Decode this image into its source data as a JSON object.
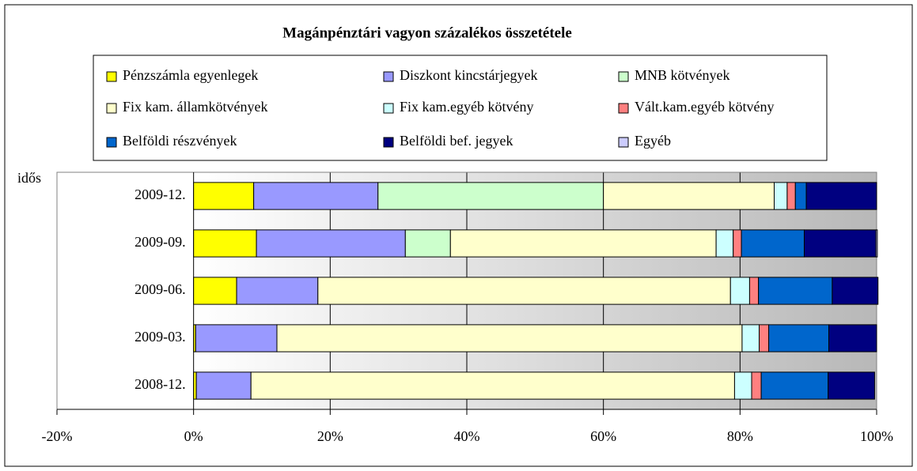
{
  "chart_data": {
    "type": "stacked-bar-horizontal",
    "title": "Magánpénztári vagyon százalékos összetétele",
    "axis_label": "idős",
    "categories": [
      "2009-12.",
      "2009-09.",
      "2009-06.",
      "2009-03.",
      "2008-12."
    ],
    "series": [
      {
        "name": "Pénzszámla egyenlegek",
        "color": "#ffff00",
        "values": [
          8.8,
          9.2,
          6.3,
          0.3,
          0.4
        ]
      },
      {
        "name": "Diszkont kincstárjegyek",
        "color": "#9999ff",
        "values": [
          18.2,
          21.8,
          11.9,
          11.9,
          8.0
        ]
      },
      {
        "name": "MNB kötvények",
        "color": "#ccffcc",
        "values": [
          33.0,
          6.6,
          0,
          0,
          0
        ]
      },
      {
        "name": "Fix kam. államkötvények",
        "color": "#ffffcc",
        "values": [
          25.0,
          38.9,
          60.4,
          68.1,
          70.8
        ]
      },
      {
        "name": "Fix kam.egyéb kötvény",
        "color": "#ccffff",
        "values": [
          1.9,
          2.5,
          2.8,
          2.5,
          2.5
        ]
      },
      {
        "name": "Vált.kam.egyéb kötvény",
        "color": "#ff8080",
        "values": [
          1.2,
          1.2,
          1.3,
          1.4,
          1.4
        ]
      },
      {
        "name": "Belföldi részvények",
        "color": "#0066cc",
        "values": [
          1.6,
          9.2,
          10.8,
          8.8,
          9.8
        ]
      },
      {
        "name": "Belföldi bef. jegyek",
        "color": "#000080",
        "values": [
          10.3,
          10.5,
          6.7,
          7.0,
          6.8
        ]
      },
      {
        "name": "Egyéb",
        "color": "#ccccff",
        "values": [
          0,
          0.2,
          0,
          0,
          0
        ]
      }
    ],
    "xlim": [
      -20,
      100
    ],
    "xticks": [
      {
        "value": -20,
        "label": "-20%"
      },
      {
        "value": 0,
        "label": "0%"
      },
      {
        "value": 20,
        "label": "20%"
      },
      {
        "value": 40,
        "label": "40%"
      },
      {
        "value": 60,
        "label": "60%"
      },
      {
        "value": 80,
        "label": "80%"
      },
      {
        "value": 100,
        "label": "100%"
      }
    ],
    "grid": true
  }
}
